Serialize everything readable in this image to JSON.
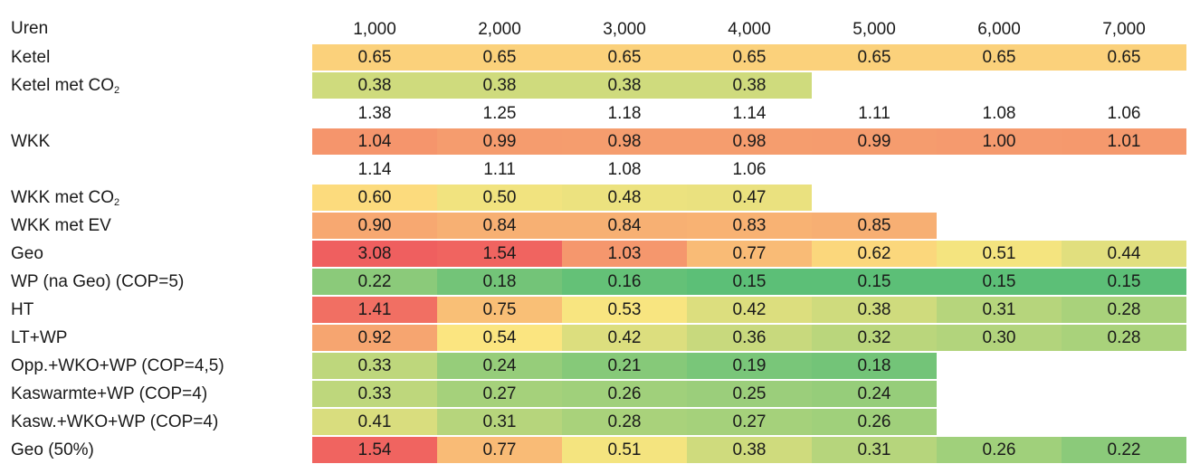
{
  "chart_data": {
    "type": "heatmap",
    "row_header_label": "Uren",
    "columns": [
      "1,000",
      "2,000",
      "3,000",
      "4,000",
      "5,000",
      "6,000",
      "7,000"
    ],
    "rows": [
      {
        "label": "Ketel",
        "values": [
          "0.65",
          "0.65",
          "0.65",
          "0.65",
          "0.65",
          "0.65",
          "0.65"
        ]
      },
      {
        "label": "Ketel met CO₂",
        "values": [
          "0.38",
          "0.38",
          "0.38",
          "0.38",
          null,
          null,
          null
        ]
      },
      {
        "label": "",
        "values": [
          "1.38",
          "1.25",
          "1.18",
          "1.14",
          "1.11",
          "1.08",
          "1.06"
        ],
        "uncolored": true
      },
      {
        "label": "WKK",
        "values": [
          "1.04",
          "0.99",
          "0.98",
          "0.98",
          "0.99",
          "1.00",
          "1.01"
        ]
      },
      {
        "label": "",
        "values": [
          "1.14",
          "1.11",
          "1.08",
          "1.06",
          null,
          null,
          null
        ],
        "uncolored": true
      },
      {
        "label": "WKK met CO₂",
        "values": [
          "0.60",
          "0.50",
          "0.48",
          "0.47",
          null,
          null,
          null
        ]
      },
      {
        "label": "WKK met EV",
        "values": [
          "0.90",
          "0.84",
          "0.84",
          "0.83",
          "0.85",
          null,
          null
        ]
      },
      {
        "label": "Geo",
        "values": [
          "3.08",
          "1.54",
          "1.03",
          "0.77",
          "0.62",
          "0.51",
          "0.44"
        ]
      },
      {
        "label": "WP (na Geo)  (COP=5)",
        "values": [
          "0.22",
          "0.18",
          "0.16",
          "0.15",
          "0.15",
          "0.15",
          "0.15"
        ]
      },
      {
        "label": "HT",
        "values": [
          "1.41",
          "0.75",
          "0.53",
          "0.42",
          "0.38",
          "0.31",
          "0.28"
        ]
      },
      {
        "label": "LT+WP",
        "values": [
          "0.92",
          "0.54",
          "0.42",
          "0.36",
          "0.32",
          "0.30",
          "0.28"
        ]
      },
      {
        "label": "Opp.+WKO+WP  (COP=4,5)",
        "values": [
          "0.33",
          "0.24",
          "0.21",
          "0.19",
          "0.18",
          null,
          null
        ]
      },
      {
        "label": "Kaswarmte+WP (COP=4)",
        "values": [
          "0.33",
          "0.27",
          "0.26",
          "0.25",
          "0.24",
          null,
          null
        ]
      },
      {
        "label": "Kasw.+WKO+WP (COP=4)",
        "values": [
          "0.41",
          "0.31",
          "0.28",
          "0.27",
          "0.26",
          null,
          null
        ]
      },
      {
        "label": "Geo (50%)",
        "values": [
          "1.54",
          "0.77",
          "0.51",
          "0.38",
          "0.31",
          "0.26",
          "0.22"
        ]
      }
    ],
    "color_scale": {
      "low": "#5cbf77",
      "mid": "#fde680",
      "high": "#ef5f5f"
    }
  }
}
